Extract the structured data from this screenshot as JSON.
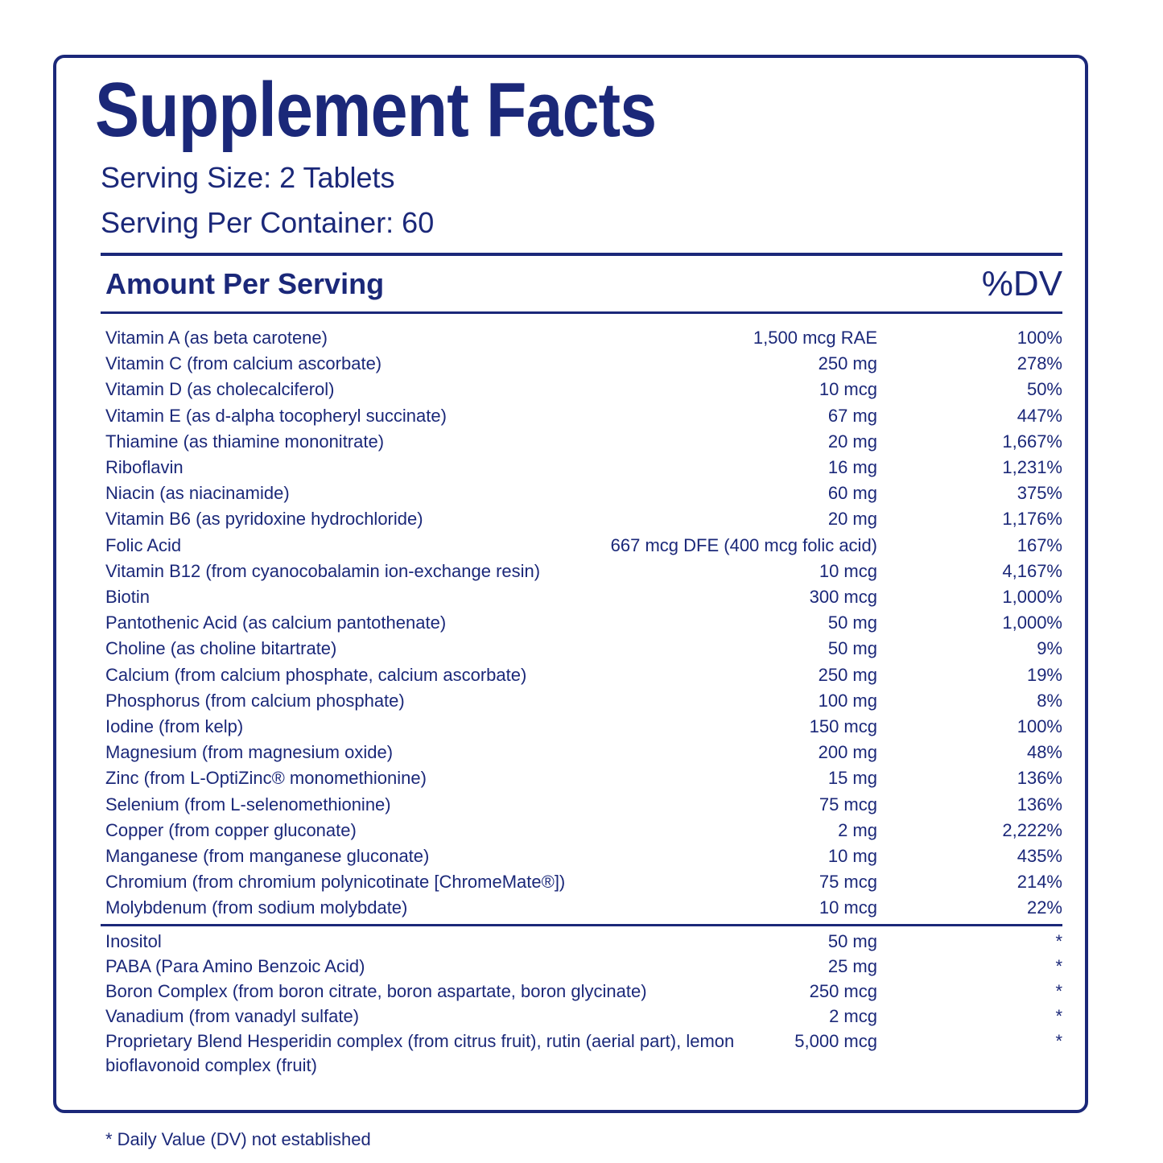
{
  "header": {
    "title": "Supplement Facts",
    "serving_size": "Serving Size: 2 Tablets",
    "servings_per_container": "Serving Per Container: 60"
  },
  "table": {
    "columns": [
      "Amount Per Serving",
      "%DV"
    ],
    "rows": [
      [
        "Vitamin A (as beta carotene)",
        "1,500 mcg RAE",
        "100%"
      ],
      [
        "Vitamin C (from calcium ascorbate)",
        "250 mg",
        "278%"
      ],
      [
        "Vitamin D (as cholecalciferol)",
        "10 mcg",
        "50%"
      ],
      [
        "Vitamin E (as d-alpha tocopheryl succinate)",
        "67 mg",
        "447%"
      ],
      [
        "Thiamine (as thiamine mononitrate)",
        "20 mg",
        "1,667%"
      ],
      [
        "Riboflavin",
        "16 mg",
        "1,231%"
      ],
      [
        "Niacin (as niacinamide)",
        "60 mg",
        "375%"
      ],
      [
        "Vitamin B6 (as pyridoxine hydrochloride)",
        "20 mg",
        "1,176%"
      ],
      [
        "Folic Acid",
        "667 mcg DFE (400 mcg folic acid)",
        "167%"
      ],
      [
        "Vitamin B12 (from cyanocobalamin ion-exchange resin)",
        "10 mcg",
        "4,167%"
      ],
      [
        "Biotin",
        "300 mcg",
        "1,000%"
      ],
      [
        "Pantothenic Acid (as calcium pantothenate)",
        "50 mg",
        "1,000%"
      ],
      [
        "Choline (as choline bitartrate)",
        "50 mg",
        "9%"
      ],
      [
        "Calcium (from calcium phosphate, calcium ascorbate)",
        "250 mg",
        "19%"
      ],
      [
        "Phosphorus (from calcium phosphate)",
        "100 mg",
        "8%"
      ],
      [
        "Iodine (from kelp)",
        "150 mcg",
        "100%"
      ],
      [
        "Magnesium (from magnesium oxide)",
        "200 mg",
        "48%"
      ],
      [
        "Zinc (from L-OptiZinc® monomethionine)",
        "15 mg",
        "136%"
      ],
      [
        "Selenium (from L-selenomethionine)",
        "75 mcg",
        "136%"
      ],
      [
        "Copper (from copper gluconate)",
        "2 mg",
        "2,222%"
      ],
      [
        "Manganese (from manganese gluconate)",
        "10 mg",
        "435%"
      ],
      [
        "Chromium (from chromium polynicotinate [ChromeMate®])",
        "75 mcg",
        "214%"
      ],
      [
        "Molybdenum (from sodium molybdate)",
        "10 mcg",
        "22%"
      ]
    ],
    "other_rows": [
      [
        "Inositol",
        "50 mg",
        "*"
      ],
      [
        "PABA (Para Amino Benzoic Acid)",
        "25 mg",
        "*"
      ],
      [
        "Boron Complex (from boron citrate, boron aspartate, boron glycinate)",
        "250 mcg",
        "*"
      ],
      [
        "Vanadium (from vanadyl sulfate)",
        "2 mcg",
        "*"
      ],
      [
        "Proprietary Blend Hesperidin complex (from citrus fruit), rutin (aerial part), lemon bioflavonoid complex (fruit)",
        "5,000 mcg",
        "*"
      ]
    ]
  },
  "footnote": "* Daily Value (DV) not established"
}
